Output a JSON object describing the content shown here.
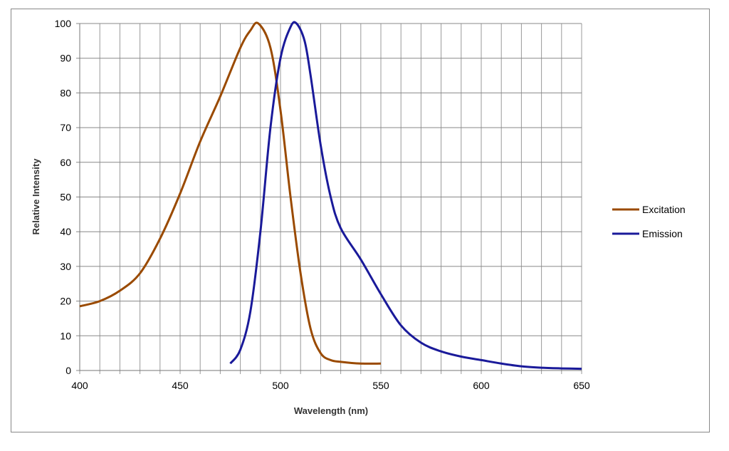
{
  "chart_data": {
    "type": "line",
    "title": "",
    "xlabel": "Wavelength (nm)",
    "ylabel": "Relative Intensity",
    "xlim": [
      400,
      650
    ],
    "ylim": [
      0,
      100
    ],
    "xticks": [
      400,
      450,
      500,
      550,
      600,
      650
    ],
    "yticks": [
      0,
      10,
      20,
      30,
      40,
      50,
      60,
      70,
      80,
      90,
      100
    ],
    "x_minor_grid_step": 10,
    "grid": true,
    "legend_position": "right",
    "series": [
      {
        "name": "Excitation",
        "color": "#9a4a00",
        "x": [
          400,
          410,
          420,
          430,
          440,
          450,
          460,
          470,
          480,
          485,
          489,
          495,
          500,
          505,
          510,
          515,
          520,
          525,
          530,
          540,
          550
        ],
        "y": [
          18.5,
          20,
          23,
          28,
          38,
          51,
          66,
          79,
          93,
          98,
          100,
          93,
          75,
          50,
          28,
          12,
          5,
          3,
          2.5,
          2,
          2
        ]
      },
      {
        "name": "Emission",
        "color": "#1a1a9a",
        "x": [
          475,
          480,
          485,
          490,
          495,
          500,
          505,
          508,
          512,
          515,
          520,
          525,
          530,
          540,
          550,
          560,
          570,
          580,
          590,
          600,
          610,
          620,
          630,
          640,
          650
        ],
        "y": [
          2,
          6,
          17,
          40,
          70,
          90,
          99,
          100,
          95,
          85,
          65,
          50,
          41,
          32,
          22,
          13,
          8,
          5.5,
          4,
          3,
          2,
          1.2,
          0.8,
          0.6,
          0.5
        ]
      }
    ]
  }
}
